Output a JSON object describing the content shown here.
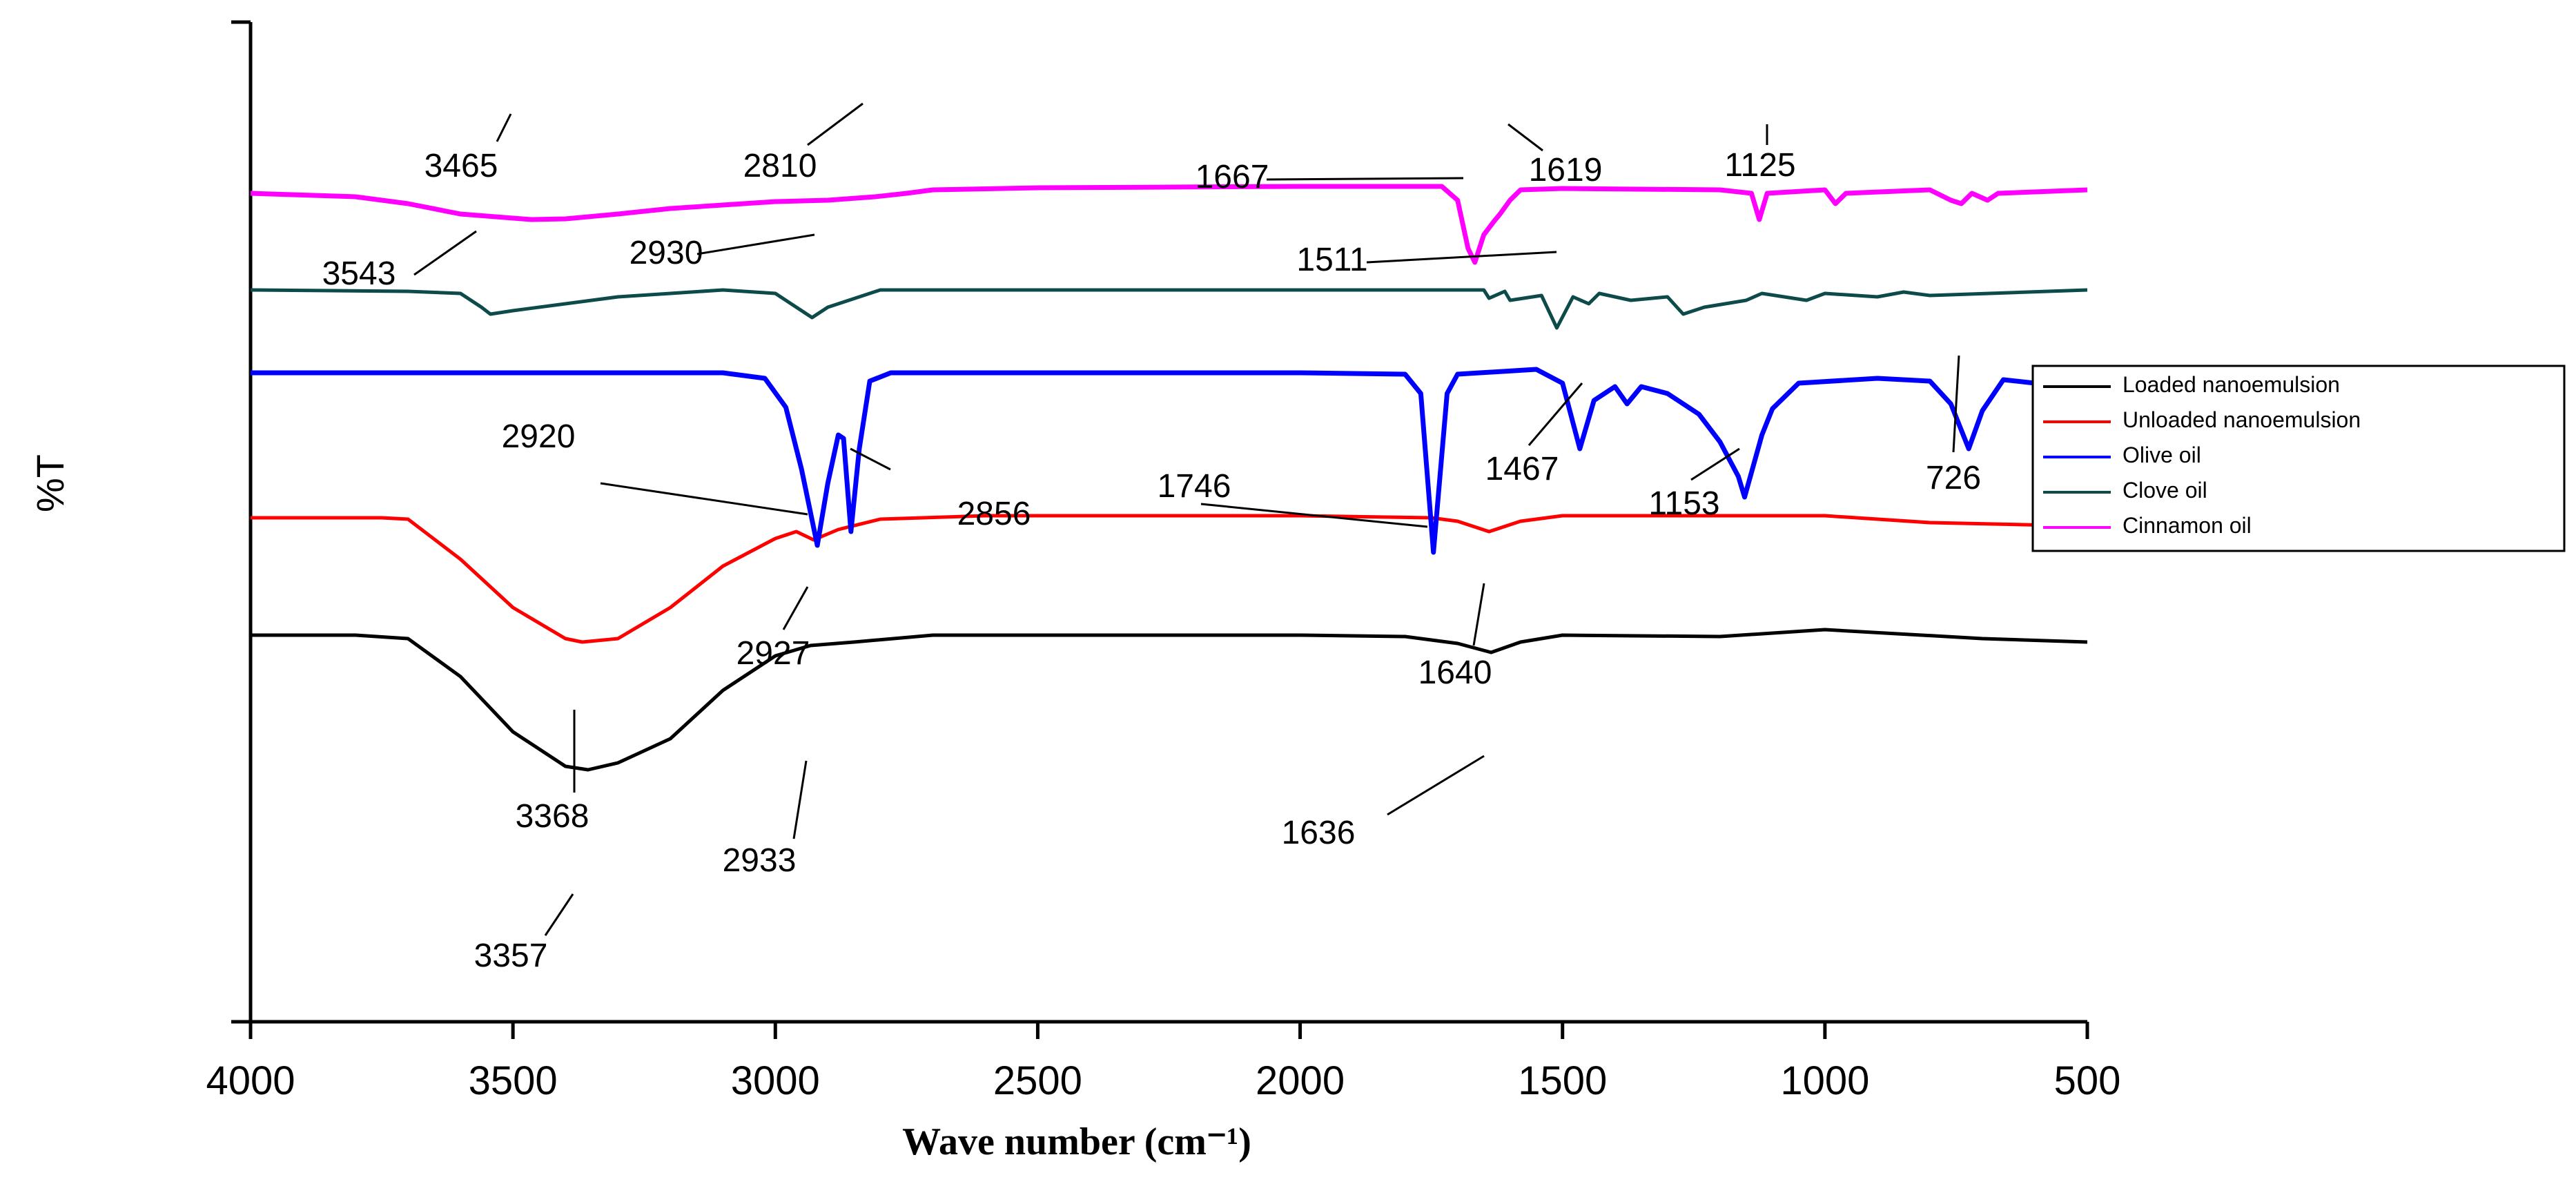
{
  "chart_data": {
    "type": "line",
    "xlabel": "Wave number (cm⁻¹)",
    "ylabel": "%T",
    "xlim": [
      4000,
      500
    ],
    "xticks": [
      4000,
      3500,
      3000,
      2500,
      2000,
      1500,
      1000,
      500
    ],
    "x_reversed": true,
    "legend_position": "right",
    "series": [
      {
        "name": "Loaded nanoemulsion",
        "color": "#000000",
        "baseline": 0.56,
        "points": [
          [
            4000,
            0.56
          ],
          [
            3800,
            0.56
          ],
          [
            3700,
            0.555
          ],
          [
            3600,
            0.5
          ],
          [
            3500,
            0.42
          ],
          [
            3400,
            0.37
          ],
          [
            3357,
            0.365
          ],
          [
            3300,
            0.375
          ],
          [
            3200,
            0.41
          ],
          [
            3100,
            0.48
          ],
          [
            3000,
            0.53
          ],
          [
            2933,
            0.545
          ],
          [
            2850,
            0.55
          ],
          [
            2700,
            0.56
          ],
          [
            2400,
            0.56
          ],
          [
            2000,
            0.56
          ],
          [
            1800,
            0.558
          ],
          [
            1700,
            0.548
          ],
          [
            1636,
            0.535
          ],
          [
            1580,
            0.55
          ],
          [
            1500,
            0.56
          ],
          [
            1200,
            0.558
          ],
          [
            1000,
            0.568
          ],
          [
            700,
            0.555
          ],
          [
            500,
            0.55
          ]
        ],
        "peak_labels": [
          "3357",
          "2933",
          "1636"
        ]
      },
      {
        "name": "Unloaded nanoemulsion",
        "color": "#ff0000",
        "baseline": 0.73,
        "points": [
          [
            4000,
            0.73
          ],
          [
            3750,
            0.73
          ],
          [
            3700,
            0.728
          ],
          [
            3600,
            0.67
          ],
          [
            3500,
            0.6
          ],
          [
            3400,
            0.555
          ],
          [
            3368,
            0.55
          ],
          [
            3300,
            0.555
          ],
          [
            3200,
            0.6
          ],
          [
            3100,
            0.66
          ],
          [
            3000,
            0.7
          ],
          [
            2960,
            0.71
          ],
          [
            2927,
            0.698
          ],
          [
            2880,
            0.713
          ],
          [
            2800,
            0.728
          ],
          [
            2600,
            0.733
          ],
          [
            2000,
            0.733
          ],
          [
            1750,
            0.73
          ],
          [
            1700,
            0.725
          ],
          [
            1640,
            0.71
          ],
          [
            1580,
            0.725
          ],
          [
            1500,
            0.733
          ],
          [
            1000,
            0.733
          ],
          [
            800,
            0.723
          ],
          [
            500,
            0.718
          ]
        ],
        "peak_labels": [
          "3368",
          "2927",
          "1640"
        ]
      },
      {
        "name": "Olive oil",
        "color": "#0000ff",
        "baseline": 0.94,
        "points": [
          [
            4000,
            0.94
          ],
          [
            3100,
            0.94
          ],
          [
            3020,
            0.932
          ],
          [
            2980,
            0.89
          ],
          [
            2950,
            0.8
          ],
          [
            2920,
            0.69
          ],
          [
            2900,
            0.78
          ],
          [
            2880,
            0.85
          ],
          [
            2870,
            0.845
          ],
          [
            2856,
            0.71
          ],
          [
            2840,
            0.83
          ],
          [
            2820,
            0.928
          ],
          [
            2780,
            0.94
          ],
          [
            2000,
            0.94
          ],
          [
            1800,
            0.938
          ],
          [
            1770,
            0.91
          ],
          [
            1746,
            0.68
          ],
          [
            1720,
            0.91
          ],
          [
            1700,
            0.938
          ],
          [
            1550,
            0.945
          ],
          [
            1500,
            0.925
          ],
          [
            1467,
            0.83
          ],
          [
            1440,
            0.9
          ],
          [
            1400,
            0.92
          ],
          [
            1377,
            0.895
          ],
          [
            1350,
            0.92
          ],
          [
            1300,
            0.91
          ],
          [
            1240,
            0.88
          ],
          [
            1200,
            0.84
          ],
          [
            1165,
            0.79
          ],
          [
            1153,
            0.76
          ],
          [
            1120,
            0.85
          ],
          [
            1100,
            0.888
          ],
          [
            1050,
            0.925
          ],
          [
            900,
            0.932
          ],
          [
            800,
            0.928
          ],
          [
            760,
            0.895
          ],
          [
            726,
            0.83
          ],
          [
            700,
            0.885
          ],
          [
            660,
            0.93
          ],
          [
            600,
            0.925
          ],
          [
            550,
            0.94
          ],
          [
            500,
            0.94
          ]
        ],
        "peak_labels": [
          "2920",
          "2856",
          "1746",
          "1467",
          "1153",
          "726"
        ]
      },
      {
        "name": "Clove oil",
        "color": "#0d4a4a",
        "baseline": 1.06,
        "points": [
          [
            4000,
            1.06
          ],
          [
            3700,
            1.058
          ],
          [
            3600,
            1.055
          ],
          [
            3560,
            1.035
          ],
          [
            3543,
            1.025
          ],
          [
            3500,
            1.03
          ],
          [
            3300,
            1.05
          ],
          [
            3100,
            1.06
          ],
          [
            3000,
            1.055
          ],
          [
            2960,
            1.035
          ],
          [
            2930,
            1.02
          ],
          [
            2900,
            1.035
          ],
          [
            2860,
            1.045
          ],
          [
            2800,
            1.06
          ],
          [
            2000,
            1.06
          ],
          [
            1650,
            1.06
          ],
          [
            1640,
            1.048
          ],
          [
            1610,
            1.058
          ],
          [
            1600,
            1.045
          ],
          [
            1540,
            1.052
          ],
          [
            1511,
            1.005
          ],
          [
            1480,
            1.05
          ],
          [
            1450,
            1.04
          ],
          [
            1430,
            1.055
          ],
          [
            1370,
            1.045
          ],
          [
            1300,
            1.05
          ],
          [
            1270,
            1.025
          ],
          [
            1230,
            1.035
          ],
          [
            1150,
            1.045
          ],
          [
            1120,
            1.055
          ],
          [
            1035,
            1.045
          ],
          [
            1000,
            1.055
          ],
          [
            900,
            1.05
          ],
          [
            850,
            1.057
          ],
          [
            800,
            1.052
          ],
          [
            500,
            1.06
          ]
        ],
        "peak_labels": [
          "3543",
          "2930",
          "1511"
        ]
      },
      {
        "name": "Cinnamon oil",
        "color": "#ff00ff",
        "baseline": 1.2,
        "points": [
          [
            4000,
            1.2
          ],
          [
            3800,
            1.195
          ],
          [
            3700,
            1.185
          ],
          [
            3600,
            1.17
          ],
          [
            3465,
            1.162
          ],
          [
            3400,
            1.163
          ],
          [
            3300,
            1.17
          ],
          [
            3200,
            1.178
          ],
          [
            3000,
            1.188
          ],
          [
            2900,
            1.19
          ],
          [
            2810,
            1.195
          ],
          [
            2750,
            1.2
          ],
          [
            2700,
            1.205
          ],
          [
            2500,
            1.208
          ],
          [
            2000,
            1.21
          ],
          [
            1730,
            1.21
          ],
          [
            1700,
            1.19
          ],
          [
            1680,
            1.12
          ],
          [
            1667,
            1.1
          ],
          [
            1650,
            1.14
          ],
          [
            1630,
            1.16
          ],
          [
            1619,
            1.17
          ],
          [
            1600,
            1.19
          ],
          [
            1580,
            1.205
          ],
          [
            1500,
            1.207
          ],
          [
            1200,
            1.205
          ],
          [
            1140,
            1.2
          ],
          [
            1125,
            1.162
          ],
          [
            1110,
            1.2
          ],
          [
            1000,
            1.205
          ],
          [
            980,
            1.185
          ],
          [
            960,
            1.2
          ],
          [
            800,
            1.205
          ],
          [
            760,
            1.19
          ],
          [
            740,
            1.185
          ],
          [
            720,
            1.2
          ],
          [
            690,
            1.19
          ],
          [
            670,
            1.2
          ],
          [
            500,
            1.205
          ]
        ],
        "peak_labels": [
          "3465",
          "2810",
          "1667",
          "1619",
          "1125"
        ]
      }
    ]
  }
}
